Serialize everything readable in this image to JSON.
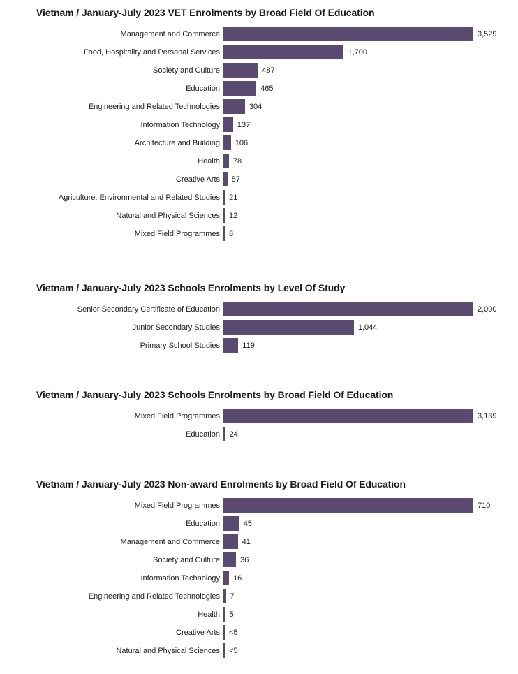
{
  "page": {
    "background_color": "#ffffff",
    "bar_color": "#5a4a72",
    "title_color": "#1a1a1a",
    "label_color": "#222222"
  },
  "chart_data": [
    {
      "type": "bar",
      "orientation": "horizontal",
      "title": "Vietnam / January-July 2023 VET Enrolments by Broad Field Of Education",
      "categories": [
        "Management and Commerce",
        "Food, Hospitality and Personal Services",
        "Society and Culture",
        "Education",
        "Engineering and Related Technologies",
        "Information Technology",
        "Architecture and Building",
        "Health",
        "Creative Arts",
        "Agriculture, Environmental and Related Studies",
        "Natural and Physical Sciences",
        "Mixed Field Programmes"
      ],
      "values": [
        3529,
        1700,
        487,
        465,
        304,
        137,
        106,
        78,
        57,
        21,
        12,
        8
      ],
      "value_labels": [
        "3,529",
        "1,700",
        "487",
        "465",
        "304",
        "137",
        "106",
        "78",
        "57",
        "21",
        "12",
        "8"
      ],
      "xlim": [
        0,
        3529
      ],
      "grid": false,
      "legend": false
    },
    {
      "type": "bar",
      "orientation": "horizontal",
      "title": "Vietnam / January-July 2023 Schools Enrolments by Level Of Study",
      "categories": [
        "Senior Secondary Certificate of Education",
        "Junior Secondary Studies",
        "Primary School Studies"
      ],
      "values": [
        2000,
        1044,
        119
      ],
      "value_labels": [
        "2,000",
        "1,044",
        "119"
      ],
      "xlim": [
        0,
        2000
      ],
      "grid": false,
      "legend": false
    },
    {
      "type": "bar",
      "orientation": "horizontal",
      "title": "Vietnam / January-July 2023 Schools Enrolments by Broad Field Of Education",
      "categories": [
        "Mixed Field Programmes",
        "Education"
      ],
      "values": [
        3139,
        24
      ],
      "value_labels": [
        "3,139",
        "24"
      ],
      "xlim": [
        0,
        3139
      ],
      "grid": false,
      "legend": false
    },
    {
      "type": "bar",
      "orientation": "horizontal",
      "title": "Vietnam / January-July 2023 Non-award Enrolments by Broad Field Of Education",
      "categories": [
        "Mixed Field Programmes",
        "Education",
        "Management and Commerce",
        "Society and Culture",
        "Information Technology",
        "Engineering and Related Technologies",
        "Health",
        "Creative Arts",
        "Natural and Physical Sciences"
      ],
      "values": [
        710,
        45,
        41,
        36,
        16,
        7,
        5,
        4,
        4
      ],
      "value_labels": [
        "710",
        "45",
        "41",
        "36",
        "16",
        "7",
        "5",
        "<5",
        "<5"
      ],
      "xlim": [
        0,
        710
      ],
      "grid": false,
      "legend": false
    }
  ]
}
